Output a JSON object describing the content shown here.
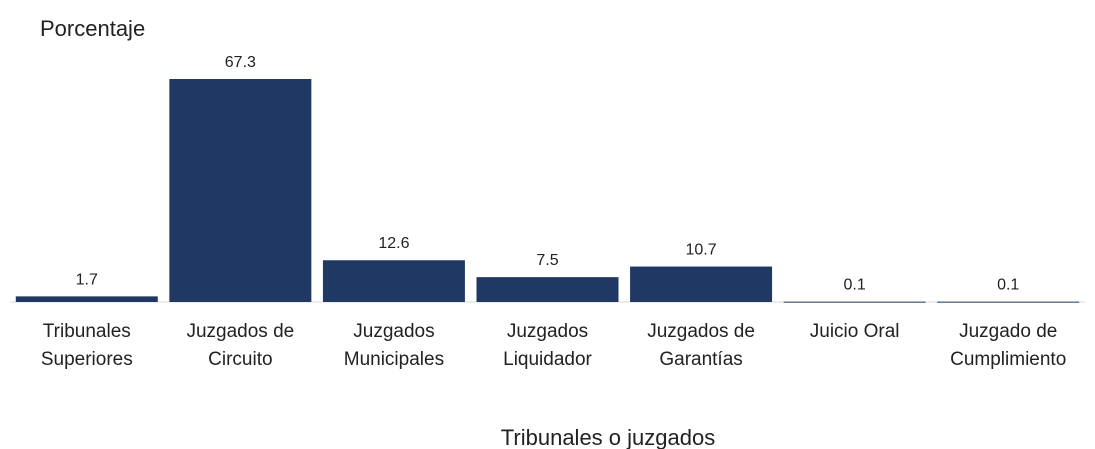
{
  "chart_data": {
    "type": "bar",
    "title": "Porcentaje",
    "x_label": "Tribunales o juzgados",
    "categories": [
      [
        "Tribunales",
        "Superiores"
      ],
      [
        "Juzgados de",
        "Circuito"
      ],
      [
        "Juzgados",
        "Municipales"
      ],
      [
        "Juzgados",
        "Liquidador"
      ],
      [
        "Juzgados de",
        "Garantías"
      ],
      [
        "Juicio Oral"
      ],
      [
        "Juzgado de",
        "Cumplimiento"
      ]
    ],
    "values": [
      1.7,
      67.3,
      12.6,
      7.5,
      10.7,
      0.1,
      0.1
    ],
    "color": "#203864"
  }
}
